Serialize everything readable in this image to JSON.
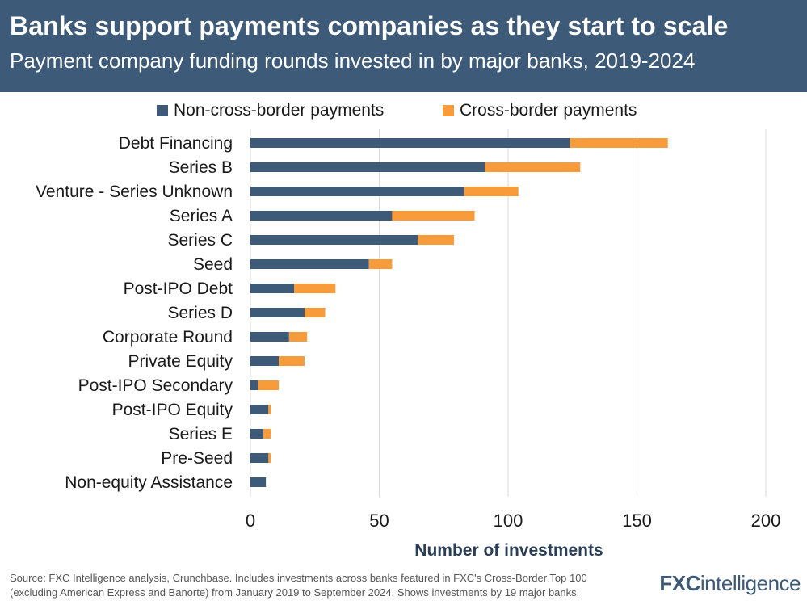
{
  "header": {
    "title": "Banks support payments companies as they start to scale",
    "subtitle": "Payment company funding rounds invested in by major banks, 2019-2024"
  },
  "colors": {
    "header_bg": "#3d5a78",
    "non_cross_border": "#3d5a78",
    "cross_border": "#f89b3a"
  },
  "legend": {
    "items": [
      {
        "label": "Non-cross-border payments",
        "color": "#3d5a78"
      },
      {
        "label": "Cross-border payments",
        "color": "#f89b3a"
      }
    ]
  },
  "chart_data": {
    "type": "bar",
    "orientation": "horizontal",
    "stacked": true,
    "categories": [
      "Debt Financing",
      "Series B",
      "Venture - Series Unknown",
      "Series A",
      "Series C",
      "Seed",
      "Post-IPO Debt",
      "Series D",
      "Corporate Round",
      "Private Equity",
      "Post-IPO Secondary",
      "Post-IPO Equity",
      "Series E",
      "Pre-Seed",
      "Non-equity Assistance"
    ],
    "series": [
      {
        "name": "Non-cross-border payments",
        "color": "#3d5a78",
        "values": [
          124,
          91,
          83,
          55,
          65,
          46,
          17,
          21,
          15,
          11,
          3,
          7,
          5,
          7,
          6
        ]
      },
      {
        "name": "Cross-border payments",
        "color": "#f89b3a",
        "values": [
          38,
          37,
          21,
          32,
          14,
          9,
          16,
          8,
          7,
          10,
          8,
          1,
          3,
          1,
          0
        ]
      }
    ],
    "xlabel": "Number of investments",
    "xlim": [
      0,
      200
    ],
    "xticks": [
      0,
      50,
      100,
      150,
      200
    ],
    "grid": "vertical"
  },
  "footer": {
    "source": "Source: FXC Intelligence analysis, Crunchbase. Includes investments across banks featured in FXC's Cross-Border Top 100 (excluding American Express and Banorte) from January 2019 to September 2024. Shows investments by 19 major banks.",
    "logo_fx": "FXC",
    "logo_rest": "intelligence"
  }
}
